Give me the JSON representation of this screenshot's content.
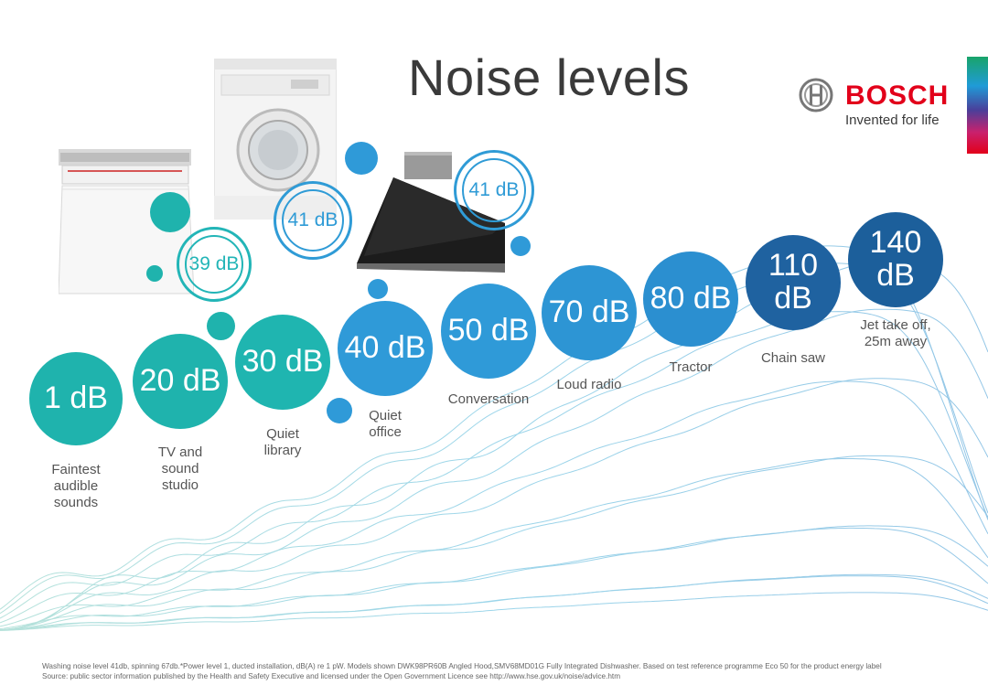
{
  "title": "Noise levels",
  "brand": {
    "name": "BOSCH",
    "tagline": "Invented for life",
    "color": "#e2001a"
  },
  "levels": [
    {
      "value": "1 dB",
      "label": "Faintest\naudible\nsounds",
      "color": "#1fb3ad"
    },
    {
      "value": "20 dB",
      "label": "TV and\nsound\nstudio",
      "color": "#1fb3ad"
    },
    {
      "value": "30 dB",
      "label": "Quiet\nlibrary",
      "color": "#1fb5b0"
    },
    {
      "value": "40 dB",
      "label": "Quiet\noffice",
      "color": "#2f9ad8"
    },
    {
      "value": "50 dB",
      "label": "Conversation",
      "color": "#2f9ad8"
    },
    {
      "value": "70 dB",
      "label": "Loud radio",
      "color": "#2d95d4"
    },
    {
      "value": "80 dB",
      "label": "Tractor",
      "color": "#2b8fd0"
    },
    {
      "value": "110\ndB",
      "label": "Chain saw",
      "color": "#1f62a0"
    },
    {
      "value": "140\ndB",
      "label": "Jet take off,\n25m away",
      "color": "#1c5f9b"
    }
  ],
  "appliances": [
    {
      "name": "dishwasher",
      "value": "39 dB",
      "accent": "#22b5b7"
    },
    {
      "name": "washing-machine",
      "value": "41 dB",
      "accent": "#2f9bd6"
    },
    {
      "name": "cooker-hood",
      "value": "41 dB",
      "accent": "#2f9bd6"
    }
  ],
  "footer": {
    "line1": "Washing noise level 41db, spinning 67db.*Power level 1, ducted installation, dB(A) re 1 pW. Models shown DWK98PR60B Angled Hood,SMV68MD01G Fully Integrated Dishwasher. Based on test reference programme Eco 50 for the product energy label",
    "line2": "Source: public sector information published by the Health and Safety Executive and licensed under the Open Government Licence see http://www.hse.gov.uk/noise/advice.htm"
  }
}
